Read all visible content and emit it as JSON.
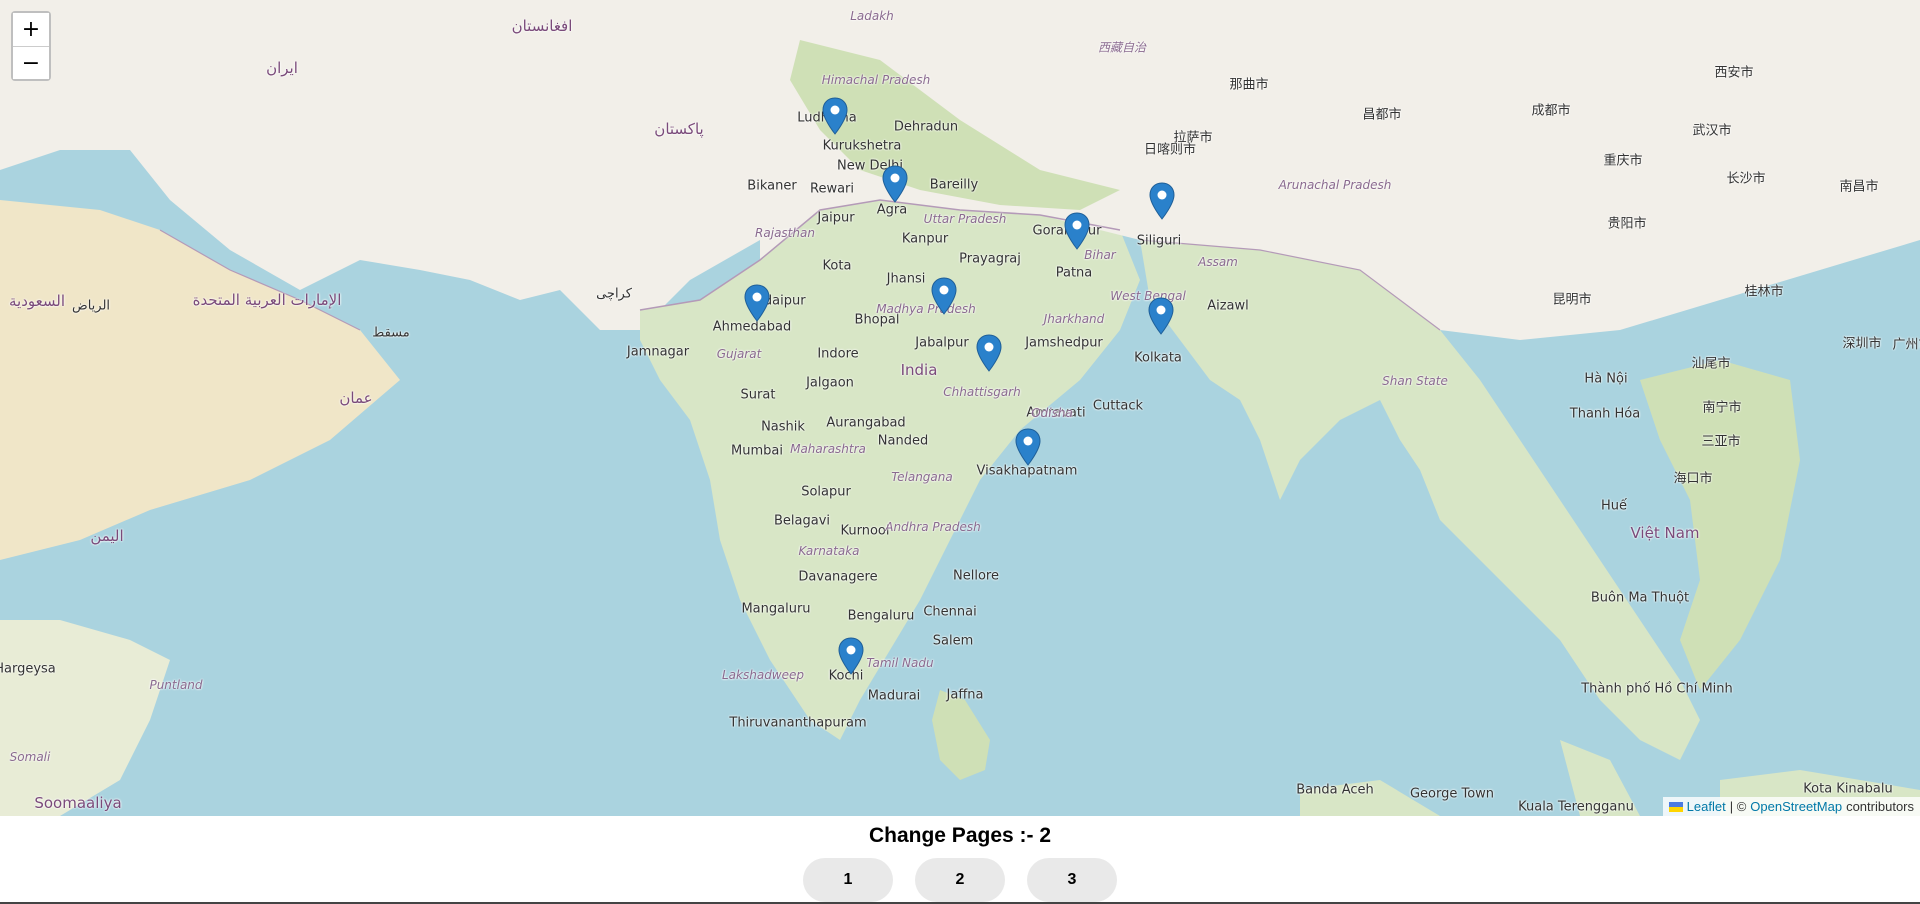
{
  "map": {
    "zoom_in_label": "+",
    "zoom_out_label": "−",
    "marker_color": "#2a81cb",
    "water_color": "#aad3df",
    "land_color": "#f2efe9",
    "labels": [
      {
        "text": "Ludhiana",
        "kind": "city"
      },
      {
        "text": "Kurukshetra",
        "kind": "city"
      },
      {
        "text": "Dehradun",
        "kind": "city"
      },
      {
        "text": "New Delhi",
        "kind": "city"
      },
      {
        "text": "Bikaner",
        "kind": "city"
      },
      {
        "text": "Rewari",
        "kind": "city"
      },
      {
        "text": "Bareilly",
        "kind": "city"
      },
      {
        "text": "Agra",
        "kind": "city"
      },
      {
        "text": "Jaipur",
        "kind": "city"
      },
      {
        "text": "Uttar Pradesh",
        "kind": "region"
      },
      {
        "text": "Rajasthan",
        "kind": "region"
      },
      {
        "text": "Gorakhpur",
        "kind": "city"
      },
      {
        "text": "Kanpur",
        "kind": "city"
      },
      {
        "text": "Prayagraj",
        "kind": "city"
      },
      {
        "text": "Bihar",
        "kind": "region"
      },
      {
        "text": "Siliguri",
        "kind": "city"
      },
      {
        "text": "Kota",
        "kind": "city"
      },
      {
        "text": "Jhansi",
        "kind": "city"
      },
      {
        "text": "Patna",
        "kind": "city"
      },
      {
        "text": "Udaipur",
        "kind": "city"
      },
      {
        "text": "Bhopal",
        "kind": "city"
      },
      {
        "text": "Ahmedabad",
        "kind": "city"
      },
      {
        "text": "Madhya Pradesh",
        "kind": "region"
      },
      {
        "text": "Jharkhand",
        "kind": "region"
      },
      {
        "text": "West Bengal",
        "kind": "region"
      },
      {
        "text": "Jamnagar",
        "kind": "city"
      },
      {
        "text": "Gujarat",
        "kind": "region"
      },
      {
        "text": "Indore",
        "kind": "city"
      },
      {
        "text": "Jabalpur",
        "kind": "city"
      },
      {
        "text": "Jamshedpur",
        "kind": "city"
      },
      {
        "text": "Kolkata",
        "kind": "city"
      },
      {
        "text": "India",
        "kind": "country"
      },
      {
        "text": "Jalgaon",
        "kind": "city"
      },
      {
        "text": "Surat",
        "kind": "city"
      },
      {
        "text": "Chhattisgarh",
        "kind": "region"
      },
      {
        "text": "Amravati",
        "kind": "city"
      },
      {
        "text": "Cuttack",
        "kind": "city"
      },
      {
        "text": "Odisha",
        "kind": "region"
      },
      {
        "text": "Nashik",
        "kind": "city"
      },
      {
        "text": "Aurangabad",
        "kind": "city"
      },
      {
        "text": "Nanded",
        "kind": "city"
      },
      {
        "text": "Mumbai",
        "kind": "city"
      },
      {
        "text": "Maharashtra",
        "kind": "region"
      },
      {
        "text": "Visakhapatnam",
        "kind": "city"
      },
      {
        "text": "Telangana",
        "kind": "region"
      },
      {
        "text": "Solapur",
        "kind": "city"
      },
      {
        "text": "Belagavi",
        "kind": "city"
      },
      {
        "text": "Kurnool",
        "kind": "city"
      },
      {
        "text": "Andhra Pradesh",
        "kind": "region"
      },
      {
        "text": "Karnataka",
        "kind": "region"
      },
      {
        "text": "Davanagere",
        "kind": "city"
      },
      {
        "text": "Nellore",
        "kind": "city"
      },
      {
        "text": "Mangaluru",
        "kind": "city"
      },
      {
        "text": "Bengaluru",
        "kind": "city"
      },
      {
        "text": "Chennai",
        "kind": "city"
      },
      {
        "text": "Salem",
        "kind": "city"
      },
      {
        "text": "Tamil Nadu",
        "kind": "region"
      },
      {
        "text": "Kochi",
        "kind": "city"
      },
      {
        "text": "Lakshadweep",
        "kind": "region"
      },
      {
        "text": "Madurai",
        "kind": "city"
      },
      {
        "text": "Jaffna",
        "kind": "city"
      },
      {
        "text": "Thiruvananthapuram",
        "kind": "city"
      },
      {
        "text": "Aizawl",
        "kind": "city"
      },
      {
        "text": "Assam",
        "kind": "region"
      },
      {
        "text": "Arunachal Pradesh",
        "kind": "region"
      },
      {
        "text": "Shan State",
        "kind": "region"
      },
      {
        "text": "Thanh Hóa",
        "kind": "city"
      },
      {
        "text": "Hà Nội",
        "kind": "city"
      },
      {
        "text": "Huế",
        "kind": "city"
      },
      {
        "text": "Việt Nam",
        "kind": "country"
      },
      {
        "text": "Buôn Ma Thuột",
        "kind": "city"
      },
      {
        "text": "Thành phố Hồ Chí Minh",
        "kind": "city"
      },
      {
        "text": "Banda Aceh",
        "kind": "city"
      },
      {
        "text": "George Town",
        "kind": "city"
      },
      {
        "text": "Kuala Terengganu",
        "kind": "city"
      },
      {
        "text": "Kota Kinabalu",
        "kind": "city"
      },
      {
        "text": "Hargeysa",
        "kind": "city"
      },
      {
        "text": "Puntland",
        "kind": "region"
      },
      {
        "text": "Soomaaliya",
        "kind": "country"
      },
      {
        "text": "Somali",
        "kind": "region"
      },
      {
        "text": "Ladakh",
        "kind": "region"
      },
      {
        "text": "Himachal Pradesh",
        "kind": "region"
      },
      {
        "text": "西藏自治",
        "kind": "region"
      },
      {
        "text": "那曲市",
        "kind": "city"
      },
      {
        "text": "昌都市",
        "kind": "city"
      },
      {
        "text": "日喀则市",
        "kind": "city"
      },
      {
        "text": "拉萨市",
        "kind": "city"
      },
      {
        "text": "成都市",
        "kind": "city"
      },
      {
        "text": "重庆市",
        "kind": "city"
      },
      {
        "text": "武汉市",
        "kind": "city"
      },
      {
        "text": "长沙市",
        "kind": "city"
      },
      {
        "text": "南昌市",
        "kind": "city"
      },
      {
        "text": "贵阳市",
        "kind": "city"
      },
      {
        "text": "昆明市",
        "kind": "city"
      },
      {
        "text": "桂林市",
        "kind": "city"
      },
      {
        "text": "广州市",
        "kind": "city"
      },
      {
        "text": "深圳市",
        "kind": "city"
      },
      {
        "text": "汕尾市",
        "kind": "city"
      },
      {
        "text": "南宁市",
        "kind": "city"
      },
      {
        "text": "海口市",
        "kind": "city"
      },
      {
        "text": "三亚市",
        "kind": "city"
      },
      {
        "text": "西安市",
        "kind": "city"
      },
      {
        "text": "ایران",
        "kind": "country"
      },
      {
        "text": "پاکستان",
        "kind": "country"
      },
      {
        "text": "افغانستان",
        "kind": "country"
      },
      {
        "text": "عمان",
        "kind": "country"
      },
      {
        "text": "اليمن",
        "kind": "country"
      },
      {
        "text": "الإمارات العربية المتحدة",
        "kind": "country"
      },
      {
        "text": "السعودية",
        "kind": "country"
      },
      {
        "text": "مسقط",
        "kind": "city"
      },
      {
        "text": "الرياض",
        "kind": "city"
      },
      {
        "text": "کراچی",
        "kind": "city"
      }
    ]
  },
  "attribution": {
    "leaflet": "Leaflet",
    "separator": "| ©",
    "osm": "OpenStreetMap",
    "suffix": "contributors"
  },
  "pager": {
    "title": "Change Pages :- 2",
    "buttons": [
      "1",
      "2",
      "3"
    ]
  }
}
